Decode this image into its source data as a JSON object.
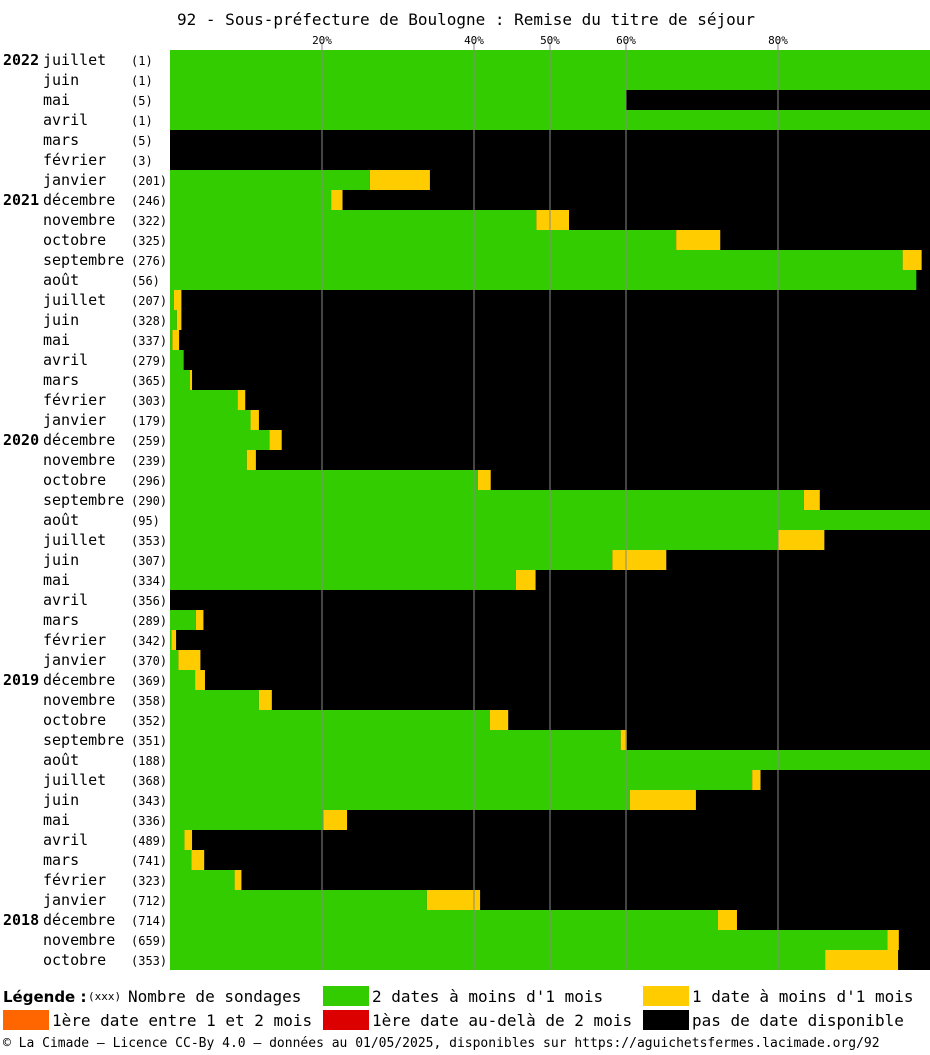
{
  "chart_data": {
    "type": "bar",
    "stacked": true,
    "orientation": "horizontal",
    "title": "92 - Sous-préfecture de Boulogne : Remise du titre de séjour",
    "x_ticks": [
      "20%",
      "40%",
      "50%",
      "60%",
      "80%"
    ],
    "x_tick_values": [
      20,
      40,
      50,
      60,
      80
    ],
    "xlim": [
      0,
      100
    ],
    "grid": true,
    "years": [
      {
        "label": "2022",
        "row": 0
      },
      {
        "label": "2021",
        "row": 7
      },
      {
        "label": "2020",
        "row": 19
      },
      {
        "label": "2019",
        "row": 31
      },
      {
        "label": "2018",
        "row": 43
      }
    ],
    "rows": [
      {
        "month": "juillet",
        "count": "(1)",
        "green": 100,
        "yellow": 0
      },
      {
        "month": "juin",
        "count": "(1)",
        "green": 100,
        "yellow": 0
      },
      {
        "month": "mai",
        "count": "(5)",
        "green": 60,
        "yellow": 0
      },
      {
        "month": "avril",
        "count": "(1)",
        "green": 100,
        "yellow": 0
      },
      {
        "month": "mars",
        "count": "(5)",
        "green": 0,
        "yellow": 0
      },
      {
        "month": "février",
        "count": "(3)",
        "green": 0,
        "yellow": 0
      },
      {
        "month": "janvier",
        "count": "(201)",
        "green": 26.3,
        "yellow": 7.9
      },
      {
        "month": "décembre",
        "count": "(246)",
        "green": 21.2,
        "yellow": 1.5
      },
      {
        "month": "novembre",
        "count": "(322)",
        "green": 48.2,
        "yellow": 4.3
      },
      {
        "month": "octobre",
        "count": "(325)",
        "green": 66.6,
        "yellow": 5.8
      },
      {
        "month": "septembre",
        "count": "(276)",
        "green": 96.4,
        "yellow": 2.5
      },
      {
        "month": "août",
        "count": "(56)",
        "green": 98.2,
        "yellow": 0
      },
      {
        "month": "juillet",
        "count": "(207)",
        "green": 0.5,
        "yellow": 1.0
      },
      {
        "month": "juin",
        "count": "(328)",
        "green": 0.9,
        "yellow": 0.6
      },
      {
        "month": "mai",
        "count": "(337)",
        "green": 0.3,
        "yellow": 0.9
      },
      {
        "month": "avril",
        "count": "(279)",
        "green": 1.8,
        "yellow": 0
      },
      {
        "month": "mars",
        "count": "(365)",
        "green": 2.6,
        "yellow": 0.3
      },
      {
        "month": "février",
        "count": "(303)",
        "green": 8.9,
        "yellow": 1.0
      },
      {
        "month": "janvier",
        "count": "(179)",
        "green": 10.6,
        "yellow": 1.1
      },
      {
        "month": "décembre",
        "count": "(259)",
        "green": 13.1,
        "yellow": 1.6
      },
      {
        "month": "novembre",
        "count": "(239)",
        "green": 10.1,
        "yellow": 1.2
      },
      {
        "month": "octobre",
        "count": "(296)",
        "green": 40.5,
        "yellow": 1.7
      },
      {
        "month": "septembre",
        "count": "(290)",
        "green": 83.4,
        "yellow": 2.1
      },
      {
        "month": "août",
        "count": "(95)",
        "green": 100,
        "yellow": 0
      },
      {
        "month": "juillet",
        "count": "(353)",
        "green": 80.0,
        "yellow": 6.1
      },
      {
        "month": "juin",
        "count": "(307)",
        "green": 58.2,
        "yellow": 7.1
      },
      {
        "month": "mai",
        "count": "(334)",
        "green": 45.5,
        "yellow": 2.6
      },
      {
        "month": "avril",
        "count": "(356)",
        "green": 0,
        "yellow": 0
      },
      {
        "month": "mars",
        "count": "(289)",
        "green": 3.4,
        "yellow": 1.0
      },
      {
        "month": "février",
        "count": "(342)",
        "green": 0.2,
        "yellow": 0.6
      },
      {
        "month": "janvier",
        "count": "(370)",
        "green": 1.1,
        "yellow": 2.9
      },
      {
        "month": "décembre",
        "count": "(369)",
        "green": 3.3,
        "yellow": 1.3
      },
      {
        "month": "novembre",
        "count": "(358)",
        "green": 11.7,
        "yellow": 1.7
      },
      {
        "month": "octobre",
        "count": "(352)",
        "green": 42.1,
        "yellow": 2.4
      },
      {
        "month": "septembre",
        "count": "(351)",
        "green": 59.3,
        "yellow": 0.8
      },
      {
        "month": "août",
        "count": "(188)",
        "green": 100,
        "yellow": 0
      },
      {
        "month": "juillet",
        "count": "(368)",
        "green": 76.6,
        "yellow": 1.1
      },
      {
        "month": "juin",
        "count": "(343)",
        "green": 60.5,
        "yellow": 8.7
      },
      {
        "month": "mai",
        "count": "(336)",
        "green": 20.2,
        "yellow": 3.1
      },
      {
        "month": "avril",
        "count": "(489)",
        "green": 1.9,
        "yellow": 1.0
      },
      {
        "month": "mars",
        "count": "(741)",
        "green": 2.8,
        "yellow": 1.7
      },
      {
        "month": "février",
        "count": "(323)",
        "green": 8.5,
        "yellow": 0.9
      },
      {
        "month": "janvier",
        "count": "(712)",
        "green": 33.8,
        "yellow": 7.0
      },
      {
        "month": "décembre",
        "count": "(714)",
        "green": 72.1,
        "yellow": 2.5
      },
      {
        "month": "novembre",
        "count": "(659)",
        "green": 94.4,
        "yellow": 1.5
      },
      {
        "month": "octobre",
        "count": "(353)",
        "green": 86.2,
        "yellow": 9.6
      }
    ],
    "colors": {
      "green": "#33cc00",
      "yellow": "#ffcc00",
      "orange": "#ff6600",
      "red": "#dd0000",
      "black": "#000000",
      "grid": "#888888"
    }
  },
  "legend": {
    "title": "Légende :",
    "count_token": "(xxx)",
    "count_label": "Nombre de sondages",
    "green_label": "2 dates à moins d'1 mois",
    "yellow_label": "1 date à moins d'1 mois",
    "orange_label": "1ère date entre 1 et 2 mois",
    "red_label": "1ère date au-delà de 2 mois",
    "black_label": "pas de date disponible"
  },
  "footer": "© La Cimade — Licence CC-By 4.0 — données au 01/05/2025, disponibles sur https://aguichetsfermes.lacimade.org/92"
}
